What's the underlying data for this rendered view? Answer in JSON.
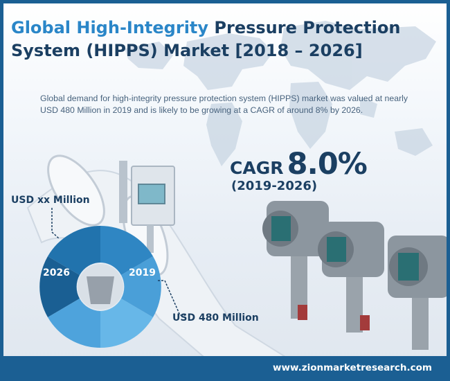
{
  "title": {
    "part1": "Global High-Integrity",
    "part2": "Pressure Protection System (HIPPS) Market [2018 – 2026]"
  },
  "description": "Global demand for high-integrity pressure protection system (HIPPS) market was valued at nearly USD 480 Million in 2019 and is likely to be growing at a CAGR of around 8% by 2026.",
  "cagr": {
    "label": "CAGR",
    "value": "8.0%",
    "period": "(2019-2026)"
  },
  "donut": {
    "year_start": "2019",
    "year_end": "2026",
    "value_start": "USD 480 Million",
    "value_end": "USD xx Million"
  },
  "colors": {
    "frame": "#1b5f93",
    "title_dark": "#1b3f62",
    "title_accent": "#2a86c8",
    "donut_dark": "#1f6aa5",
    "donut_light": "#5aaee3"
  },
  "footer": {
    "url": "www.zionmarketresearch.com"
  }
}
